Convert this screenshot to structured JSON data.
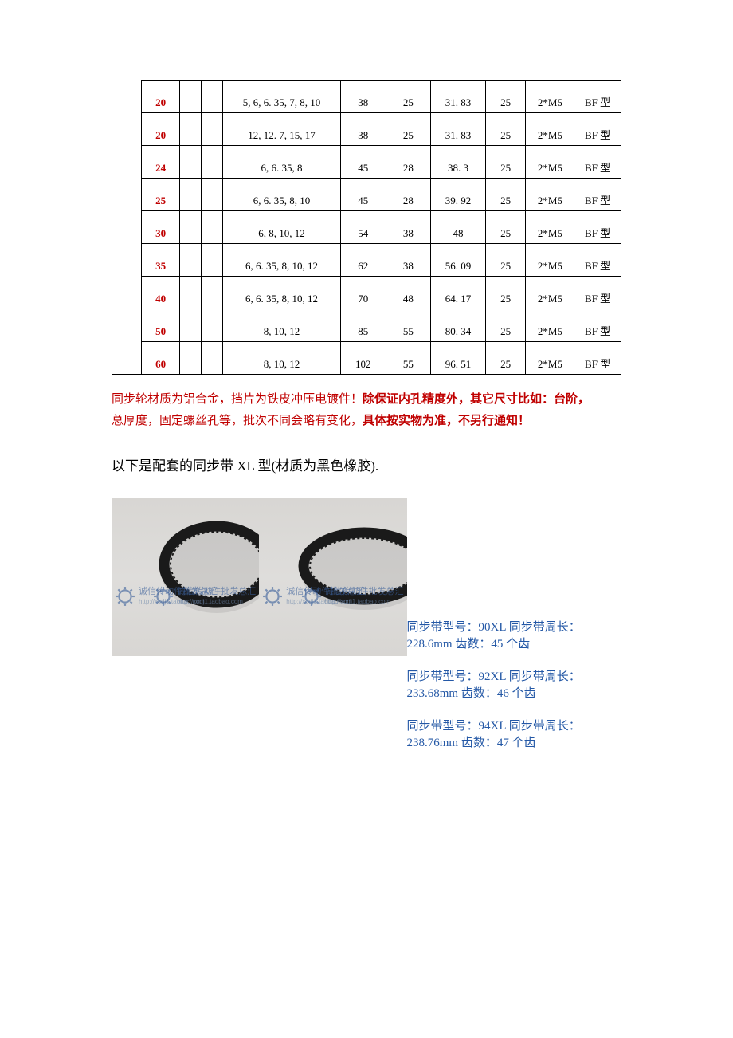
{
  "table": {
    "rows": [
      {
        "n": "20",
        "bore": "5, 6, 6. 35, 7, 8, 10",
        "c1": "38",
        "c2": "25",
        "c3": "31. 83",
        "c4": "25",
        "c5": "2*M5",
        "c6": "BF 型"
      },
      {
        "n": "20",
        "bore": "12, 12. 7, 15, 17",
        "c1": "38",
        "c2": "25",
        "c3": "31. 83",
        "c4": "25",
        "c5": "2*M5",
        "c6": "BF 型"
      },
      {
        "n": "24",
        "bore": "6, 6. 35, 8",
        "c1": "45",
        "c2": "28",
        "c3": "38. 3",
        "c4": "25",
        "c5": "2*M5",
        "c6": "BF 型"
      },
      {
        "n": "25",
        "bore": "6, 6. 35, 8, 10",
        "c1": "45",
        "c2": "28",
        "c3": "39. 92",
        "c4": "25",
        "c5": "2*M5",
        "c6": "BF 型"
      },
      {
        "n": "30",
        "bore": "6, 8, 10, 12",
        "c1": "54",
        "c2": "38",
        "c3": "48",
        "c4": "25",
        "c5": "2*M5",
        "c6": "BF 型"
      },
      {
        "n": "35",
        "bore": "6, 6. 35, 8, 10, 12",
        "c1": "62",
        "c2": "38",
        "c3": "56. 09",
        "c4": "25",
        "c5": "2*M5",
        "c6": "BF 型"
      },
      {
        "n": "40",
        "bore": "6, 6. 35, 8, 10, 12",
        "c1": "70",
        "c2": "48",
        "c3": "64. 17",
        "c4": "25",
        "c5": "2*M5",
        "c6": "BF 型"
      },
      {
        "n": "50",
        "bore": "8, 10, 12",
        "c1": "85",
        "c2": "55",
        "c3": "80. 34",
        "c4": "25",
        "c5": "2*M5",
        "c6": "BF 型"
      },
      {
        "n": "60",
        "bore": "8, 10, 12",
        "c1": "102",
        "c2": "55",
        "c3": "96. 51",
        "c4": "25",
        "c5": "2*M5",
        "c6": "BF 型"
      }
    ]
  },
  "note": {
    "line1a": "同步轮材质为铝合金，挡片为铁皮冲压电镀件！",
    "line1b": "除保证内孔精度外，其它尺寸比如：台阶，",
    "line2a": "总厚度，固定螺丝孔等，批次不同会略有变化，",
    "line2b": "具体按实物为准，不另行通知！"
  },
  "heading2": "以下是配套的同步带 XL 型(材质为黑色橡胶).",
  "watermark": {
    "main": "诚信传动件批发总汇",
    "sub": "http://xcdj1.taobao.com"
  },
  "belts": [
    {
      "pre": "同步带型号：",
      "model": "90XL",
      "mid": "  同步带周长：  ",
      "len": "228.6mm",
      "mid2": "  齿数：",
      "teeth": "45 个齿"
    },
    {
      "pre": "同步带型号：",
      "model": "92XL",
      "mid": "  同步带周长：  ",
      "len": "233.68mm",
      "mid2": "  齿数：",
      "teeth": "46 个齿"
    },
    {
      "pre": "同步带型号：",
      "model": "94XL",
      "mid": "  同步带周长：  ",
      "len": "238.76mm",
      "mid2": "  齿数：",
      "teeth": "47 个齿"
    }
  ],
  "colors": {
    "red": "#c00000",
    "blue": "#2458a6",
    "imgbg": "#dad8d5",
    "wmblue": "#3a5f9a"
  }
}
